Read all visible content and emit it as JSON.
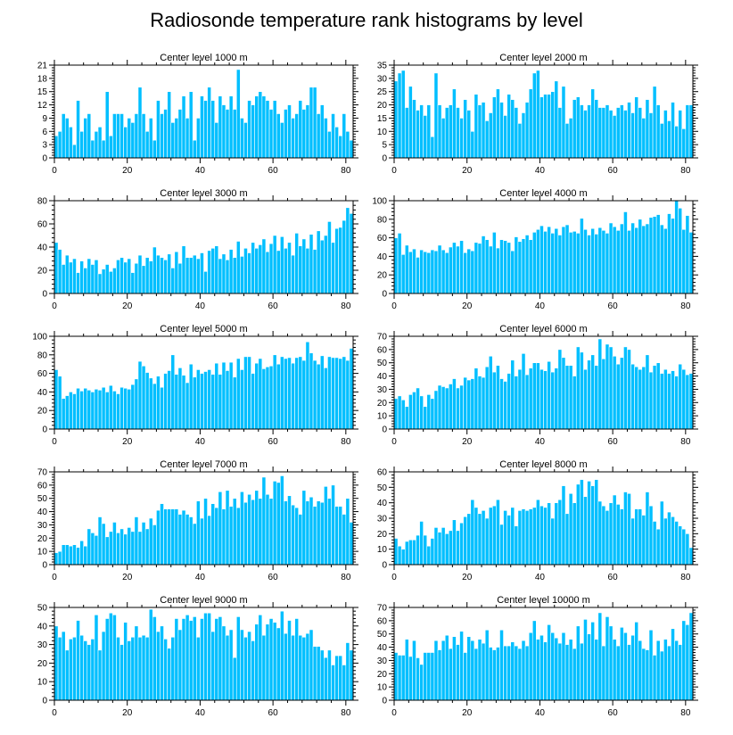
{
  "figure_title": "Radiosonde temperature rank histograms by level",
  "chart_data": [
    {
      "type": "bar",
      "title": "Center level 1000 m",
      "xlim": [
        0,
        82
      ],
      "xticks": [
        0,
        20,
        40,
        60,
        80
      ],
      "ylim": [
        0,
        21
      ],
      "yticks": [
        0,
        3,
        6,
        9,
        12,
        15,
        18,
        21
      ],
      "values": [
        5,
        6,
        10,
        9,
        7,
        3,
        13,
        6,
        9,
        10,
        4,
        6,
        7,
        4,
        15,
        5,
        10,
        10,
        10,
        7,
        9,
        8,
        10,
        16,
        10,
        6,
        9,
        4,
        13,
        10,
        11,
        15,
        8,
        9,
        11,
        14,
        9,
        15,
        4,
        9,
        14,
        13,
        16,
        13,
        8,
        14,
        12,
        11,
        14,
        11,
        20,
        9,
        8,
        13,
        12,
        14,
        15,
        14,
        13,
        11,
        13,
        10,
        8,
        11,
        12,
        9,
        10,
        13,
        11,
        12,
        16,
        16,
        10,
        12,
        9,
        6,
        10,
        7,
        5,
        10,
        6,
        4
      ]
    },
    {
      "type": "bar",
      "title": "Center level 2000 m",
      "xlim": [
        0,
        82
      ],
      "xticks": [
        0,
        20,
        40,
        60,
        80
      ],
      "ylim": [
        0,
        35
      ],
      "yticks": [
        0,
        5,
        10,
        15,
        20,
        25,
        30,
        35
      ],
      "values": [
        29,
        32,
        33,
        19,
        27,
        22,
        18,
        20,
        16,
        20,
        8,
        32,
        20,
        15,
        19,
        20,
        26,
        19,
        15,
        22,
        18,
        10,
        24,
        20,
        21,
        14,
        17,
        23,
        26,
        21,
        16,
        24,
        22,
        19,
        13,
        17,
        21,
        26,
        32,
        33,
        23,
        24,
        24,
        25,
        29,
        19,
        27,
        13,
        15,
        22,
        23,
        20,
        18,
        20,
        26,
        22,
        19,
        19,
        20,
        18,
        16,
        19,
        20,
        18,
        21,
        17,
        23,
        19,
        15,
        22,
        17,
        27,
        20,
        13,
        18,
        14,
        21,
        12,
        18,
        11,
        20,
        20
      ]
    },
    {
      "type": "bar",
      "title": "Center level 3000 m",
      "xlim": [
        0,
        82
      ],
      "xticks": [
        0,
        20,
        40,
        60,
        80
      ],
      "ylim": [
        0,
        80
      ],
      "yticks": [
        0,
        20,
        40,
        60,
        80
      ],
      "values": [
        44,
        38,
        25,
        33,
        27,
        30,
        18,
        28,
        22,
        30,
        25,
        29,
        17,
        21,
        25,
        19,
        22,
        29,
        31,
        27,
        30,
        18,
        26,
        33,
        24,
        31,
        28,
        40,
        33,
        31,
        29,
        34,
        22,
        36,
        26,
        41,
        31,
        31,
        33,
        30,
        35,
        19,
        37,
        39,
        41,
        30,
        34,
        29,
        38,
        31,
        45,
        32,
        39,
        35,
        44,
        39,
        42,
        47,
        36,
        43,
        50,
        37,
        49,
        39,
        44,
        33,
        52,
        41,
        47,
        39,
        51,
        38,
        54,
        46,
        50,
        62,
        44,
        56,
        57,
        63,
        74,
        69
      ]
    },
    {
      "type": "bar",
      "title": "Center level 4000 m",
      "xlim": [
        0,
        82
      ],
      "xticks": [
        0,
        20,
        40,
        60,
        80
      ],
      "ylim": [
        0,
        100
      ],
      "yticks": [
        0,
        20,
        40,
        60,
        80,
        100
      ],
      "values": [
        60,
        65,
        42,
        52,
        45,
        48,
        39,
        47,
        45,
        44,
        47,
        46,
        52,
        47,
        44,
        50,
        55,
        51,
        57,
        44,
        48,
        46,
        55,
        54,
        62,
        58,
        51,
        66,
        49,
        58,
        57,
        55,
        46,
        61,
        56,
        59,
        63,
        58,
        66,
        69,
        73,
        67,
        72,
        65,
        70,
        63,
        72,
        74,
        66,
        67,
        65,
        81,
        69,
        63,
        70,
        64,
        71,
        68,
        65,
        76,
        72,
        68,
        75,
        88,
        68,
        76,
        71,
        80,
        73,
        75,
        82,
        83,
        85,
        74,
        70,
        86,
        81,
        100,
        92,
        69,
        84,
        66
      ]
    },
    {
      "type": "bar",
      "title": "Center level 5000 m",
      "xlim": [
        0,
        82
      ],
      "xticks": [
        0,
        20,
        40,
        60,
        80
      ],
      "ylim": [
        0,
        100
      ],
      "yticks": [
        0,
        20,
        40,
        60,
        80,
        100
      ],
      "values": [
        64,
        57,
        33,
        36,
        40,
        38,
        44,
        41,
        44,
        42,
        40,
        43,
        42,
        45,
        40,
        47,
        41,
        38,
        45,
        44,
        43,
        48,
        54,
        73,
        68,
        61,
        55,
        49,
        57,
        45,
        60,
        63,
        80,
        59,
        66,
        58,
        50,
        70,
        56,
        64,
        60,
        62,
        64,
        59,
        71,
        59,
        72,
        63,
        72,
        56,
        76,
        64,
        78,
        78,
        60,
        71,
        76,
        65,
        67,
        68,
        80,
        70,
        78,
        76,
        77,
        71,
        77,
        78,
        74,
        94,
        82,
        74,
        70,
        79,
        66,
        78,
        77,
        77,
        76,
        78,
        74,
        87
      ]
    },
    {
      "type": "bar",
      "title": "Center level 6000 m",
      "xlim": [
        0,
        82
      ],
      "xticks": [
        0,
        20,
        40,
        60,
        80
      ],
      "ylim": [
        0,
        70
      ],
      "yticks": [
        0,
        10,
        20,
        30,
        40,
        50,
        60,
        70
      ],
      "values": [
        23,
        25,
        22,
        17,
        26,
        28,
        31,
        25,
        17,
        26,
        23,
        29,
        33,
        32,
        31,
        34,
        38,
        31,
        33,
        39,
        37,
        38,
        46,
        40,
        39,
        47,
        55,
        43,
        48,
        38,
        36,
        42,
        52,
        40,
        45,
        57,
        41,
        46,
        50,
        50,
        45,
        44,
        51,
        43,
        46,
        60,
        54,
        48,
        48,
        40,
        62,
        58,
        45,
        52,
        56,
        48,
        68,
        53,
        64,
        62,
        55,
        49,
        54,
        62,
        60,
        49,
        47,
        45,
        47,
        56,
        43,
        48,
        50,
        42,
        45,
        42,
        44,
        40,
        49,
        45,
        41,
        42
      ]
    },
    {
      "type": "bar",
      "title": "Center level 7000 m",
      "xlim": [
        0,
        82
      ],
      "xticks": [
        0,
        20,
        40,
        60,
        80
      ],
      "ylim": [
        0,
        70
      ],
      "yticks": [
        0,
        10,
        20,
        30,
        40,
        50,
        60,
        70
      ],
      "values": [
        9,
        10,
        15,
        15,
        14,
        15,
        13,
        18,
        14,
        27,
        24,
        22,
        36,
        31,
        21,
        25,
        32,
        24,
        27,
        23,
        28,
        25,
        36,
        25,
        32,
        27,
        35,
        30,
        41,
        46,
        42,
        42,
        42,
        42,
        38,
        41,
        38,
        36,
        31,
        48,
        35,
        50,
        37,
        46,
        43,
        55,
        42,
        56,
        44,
        50,
        43,
        55,
        47,
        53,
        49,
        56,
        50,
        66,
        53,
        50,
        63,
        62,
        67,
        48,
        52,
        45,
        43,
        38,
        56,
        48,
        51,
        44,
        48,
        47,
        59,
        50,
        60,
        44,
        44,
        38,
        50,
        32
      ]
    },
    {
      "type": "bar",
      "title": "Center level 8000 m",
      "xlim": [
        0,
        82
      ],
      "xticks": [
        0,
        20,
        40,
        60,
        80
      ],
      "ylim": [
        0,
        60
      ],
      "yticks": [
        0,
        10,
        20,
        30,
        40,
        50,
        60
      ],
      "values": [
        17,
        12,
        10,
        15,
        16,
        16,
        19,
        28,
        19,
        12,
        17,
        24,
        21,
        24,
        20,
        22,
        29,
        22,
        27,
        31,
        33,
        42,
        37,
        33,
        35,
        30,
        37,
        38,
        42,
        26,
        35,
        32,
        37,
        25,
        35,
        36,
        35,
        36,
        37,
        42,
        38,
        37,
        40,
        30,
        40,
        42,
        51,
        33,
        46,
        40,
        52,
        55,
        44,
        54,
        51,
        55,
        41,
        38,
        35,
        40,
        45,
        39,
        36,
        47,
        46,
        30,
        36,
        36,
        32,
        47,
        38,
        28,
        23,
        41,
        30,
        34,
        31,
        28,
        25,
        23,
        20,
        11
      ]
    },
    {
      "type": "bar",
      "title": "Center level 9000 m",
      "xlim": [
        0,
        82
      ],
      "xticks": [
        0,
        20,
        40,
        60,
        80
      ],
      "ylim": [
        0,
        50
      ],
      "yticks": [
        0,
        10,
        20,
        30,
        40,
        50
      ],
      "values": [
        40,
        34,
        37,
        27,
        33,
        34,
        43,
        35,
        32,
        30,
        33,
        46,
        27,
        37,
        44,
        47,
        46,
        34,
        30,
        42,
        32,
        34,
        40,
        34,
        35,
        34,
        49,
        45,
        37,
        40,
        33,
        28,
        34,
        44,
        38,
        44,
        46,
        43,
        45,
        34,
        44,
        47,
        47,
        37,
        44,
        45,
        40,
        35,
        38,
        23,
        45,
        38,
        34,
        37,
        32,
        41,
        46,
        35,
        41,
        44,
        42,
        39,
        48,
        36,
        43,
        35,
        44,
        35,
        34,
        36,
        38,
        29,
        29,
        27,
        23,
        27,
        19,
        24,
        24,
        19,
        31,
        27
      ]
    },
    {
      "type": "bar",
      "title": "Center level 10000 m",
      "xlim": [
        0,
        82
      ],
      "xticks": [
        0,
        20,
        40,
        60,
        80
      ],
      "ylim": [
        0,
        70
      ],
      "yticks": [
        0,
        10,
        20,
        30,
        40,
        50,
        60,
        70
      ],
      "values": [
        36,
        34,
        34,
        46,
        33,
        45,
        32,
        27,
        36,
        36,
        36,
        45,
        38,
        45,
        49,
        39,
        48,
        42,
        52,
        36,
        48,
        45,
        39,
        46,
        43,
        53,
        40,
        38,
        40,
        53,
        41,
        41,
        44,
        41,
        39,
        45,
        41,
        51,
        60,
        46,
        49,
        44,
        57,
        51,
        47,
        43,
        51,
        42,
        46,
        39,
        56,
        43,
        61,
        50,
        59,
        46,
        66,
        41,
        63,
        56,
        46,
        41,
        55,
        51,
        42,
        49,
        59,
        45,
        39,
        38,
        53,
        34,
        45,
        37,
        46,
        41,
        54,
        45,
        42,
        60,
        57,
        66
      ]
    }
  ]
}
